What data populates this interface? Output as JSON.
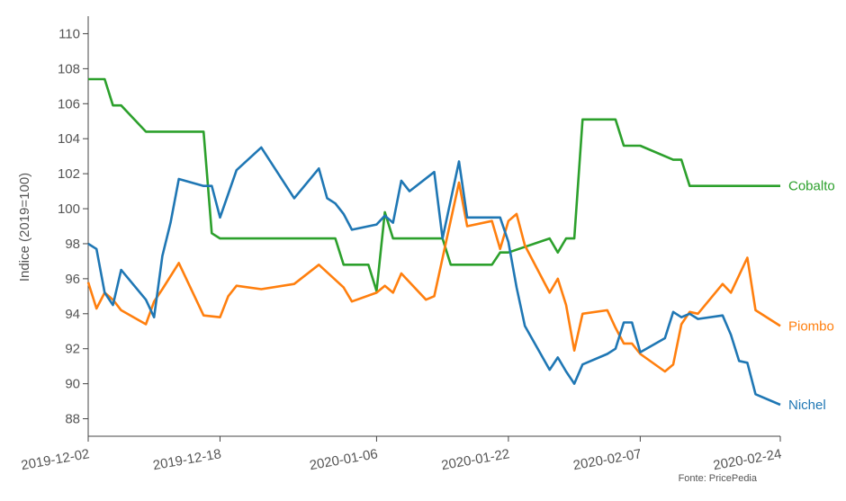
{
  "chart_data": {
    "type": "line",
    "ylabel": "Indice (2019=100)",
    "ylim": [
      87,
      111
    ],
    "yticks": [
      88,
      90,
      92,
      94,
      96,
      98,
      100,
      102,
      104,
      106,
      108,
      110
    ],
    "xlim": [
      "2019-12-02",
      "2020-02-24"
    ],
    "xticks": [
      "2019-12-02",
      "2019-12-18",
      "2020-01-06",
      "2020-01-22",
      "2020-02-07",
      "2020-02-24"
    ],
    "grid": false,
    "legend": "end-of-line labels",
    "source": "Fonte: PricePedia",
    "series": [
      {
        "name": "Cobalto",
        "color": "#2ca02c",
        "points": [
          [
            "2019-12-02",
            107.4
          ],
          [
            "2019-12-04",
            107.4
          ],
          [
            "2019-12-05",
            105.9
          ],
          [
            "2019-12-06",
            105.9
          ],
          [
            "2019-12-09",
            104.4
          ],
          [
            "2019-12-16",
            104.4
          ],
          [
            "2019-12-17",
            98.6
          ],
          [
            "2019-12-18",
            98.3
          ],
          [
            "2020-01-01",
            98.3
          ],
          [
            "2020-01-02",
            96.8
          ],
          [
            "2020-01-05",
            96.8
          ],
          [
            "2020-01-06",
            95.3
          ],
          [
            "2020-01-07",
            99.8
          ],
          [
            "2020-01-08",
            98.3
          ],
          [
            "2020-01-14",
            98.3
          ],
          [
            "2020-01-15",
            96.8
          ],
          [
            "2020-01-20",
            96.8
          ],
          [
            "2020-01-21",
            97.5
          ],
          [
            "2020-01-22",
            97.5
          ],
          [
            "2020-01-27",
            98.3
          ],
          [
            "2020-01-28",
            97.5
          ],
          [
            "2020-01-29",
            98.3
          ],
          [
            "2020-01-30",
            98.3
          ],
          [
            "2020-01-31",
            105.1
          ],
          [
            "2020-02-04",
            105.1
          ],
          [
            "2020-02-05",
            103.6
          ],
          [
            "2020-02-07",
            103.6
          ],
          [
            "2020-02-11",
            102.8
          ],
          [
            "2020-02-12",
            102.8
          ],
          [
            "2020-02-13",
            101.3
          ],
          [
            "2020-02-24",
            101.3
          ]
        ]
      },
      {
        "name": "Piombo",
        "color": "#ff7f0e",
        "points": [
          [
            "2019-12-02",
            95.8
          ],
          [
            "2019-12-03",
            94.3
          ],
          [
            "2019-12-04",
            95.2
          ],
          [
            "2019-12-05",
            94.8
          ],
          [
            "2019-12-06",
            94.2
          ],
          [
            "2019-12-09",
            93.4
          ],
          [
            "2019-12-10",
            94.7
          ],
          [
            "2019-12-11",
            95.4
          ],
          [
            "2019-12-13",
            96.9
          ],
          [
            "2019-12-16",
            93.9
          ],
          [
            "2019-12-18",
            93.8
          ],
          [
            "2019-12-19",
            95.0
          ],
          [
            "2019-12-20",
            95.6
          ],
          [
            "2019-12-23",
            95.4
          ],
          [
            "2019-12-27",
            95.7
          ],
          [
            "2019-12-30",
            96.8
          ],
          [
            "2020-01-02",
            95.5
          ],
          [
            "2020-01-03",
            94.7
          ],
          [
            "2020-01-06",
            95.2
          ],
          [
            "2020-01-07",
            95.6
          ],
          [
            "2020-01-08",
            95.2
          ],
          [
            "2020-01-09",
            96.3
          ],
          [
            "2020-01-12",
            94.8
          ],
          [
            "2020-01-13",
            95.0
          ],
          [
            "2020-01-16",
            101.5
          ],
          [
            "2020-01-17",
            99.0
          ],
          [
            "2020-01-20",
            99.3
          ],
          [
            "2020-01-21",
            97.7
          ],
          [
            "2020-01-22",
            99.3
          ],
          [
            "2020-01-23",
            99.7
          ],
          [
            "2020-01-24",
            97.9
          ],
          [
            "2020-01-27",
            95.2
          ],
          [
            "2020-01-28",
            96.0
          ],
          [
            "2020-01-29",
            94.5
          ],
          [
            "2020-01-30",
            91.9
          ],
          [
            "2020-01-31",
            94.0
          ],
          [
            "2020-02-03",
            94.2
          ],
          [
            "2020-02-04",
            93.2
          ],
          [
            "2020-02-05",
            92.3
          ],
          [
            "2020-02-06",
            92.3
          ],
          [
            "2020-02-07",
            91.7
          ],
          [
            "2020-02-10",
            90.7
          ],
          [
            "2020-02-11",
            91.1
          ],
          [
            "2020-02-12",
            93.4
          ],
          [
            "2020-02-13",
            94.1
          ],
          [
            "2020-02-14",
            94.0
          ],
          [
            "2020-02-17",
            95.7
          ],
          [
            "2020-02-18",
            95.2
          ],
          [
            "2020-02-20",
            97.2
          ],
          [
            "2020-02-21",
            94.2
          ],
          [
            "2020-02-24",
            93.3
          ]
        ]
      },
      {
        "name": "Nichel",
        "color": "#1f77b4",
        "points": [
          [
            "2019-12-02",
            98.0
          ],
          [
            "2019-12-03",
            97.7
          ],
          [
            "2019-12-04",
            95.2
          ],
          [
            "2019-12-05",
            94.5
          ],
          [
            "2019-12-06",
            96.5
          ],
          [
            "2019-12-09",
            94.8
          ],
          [
            "2019-12-10",
            93.8
          ],
          [
            "2019-12-11",
            97.3
          ],
          [
            "2019-12-12",
            99.2
          ],
          [
            "2019-12-13",
            101.7
          ],
          [
            "2019-12-16",
            101.3
          ],
          [
            "2019-12-17",
            101.3
          ],
          [
            "2019-12-18",
            99.5
          ],
          [
            "2019-12-20",
            102.2
          ],
          [
            "2019-12-23",
            103.5
          ],
          [
            "2019-12-27",
            100.6
          ],
          [
            "2019-12-30",
            102.3
          ],
          [
            "2019-12-31",
            100.6
          ],
          [
            "2020-01-01",
            100.3
          ],
          [
            "2020-01-02",
            99.7
          ],
          [
            "2020-01-03",
            98.8
          ],
          [
            "2020-01-06",
            99.1
          ],
          [
            "2020-01-07",
            99.6
          ],
          [
            "2020-01-08",
            99.2
          ],
          [
            "2020-01-09",
            101.6
          ],
          [
            "2020-01-10",
            101.0
          ],
          [
            "2020-01-13",
            102.1
          ],
          [
            "2020-01-14",
            98.3
          ],
          [
            "2020-01-16",
            102.7
          ],
          [
            "2020-01-17",
            99.5
          ],
          [
            "2020-01-21",
            99.5
          ],
          [
            "2020-01-22",
            98.1
          ],
          [
            "2020-01-23",
            95.5
          ],
          [
            "2020-01-24",
            93.3
          ],
          [
            "2020-01-27",
            90.8
          ],
          [
            "2020-01-28",
            91.5
          ],
          [
            "2020-01-29",
            90.7
          ],
          [
            "2020-01-30",
            90.0
          ],
          [
            "2020-01-31",
            91.1
          ],
          [
            "2020-02-03",
            91.7
          ],
          [
            "2020-02-04",
            92.0
          ],
          [
            "2020-02-05",
            93.5
          ],
          [
            "2020-02-06",
            93.5
          ],
          [
            "2020-02-07",
            91.8
          ],
          [
            "2020-02-10",
            92.6
          ],
          [
            "2020-02-11",
            94.1
          ],
          [
            "2020-02-12",
            93.8
          ],
          [
            "2020-02-13",
            94.0
          ],
          [
            "2020-02-14",
            93.7
          ],
          [
            "2020-02-17",
            93.9
          ],
          [
            "2020-02-18",
            92.8
          ],
          [
            "2020-02-19",
            91.3
          ],
          [
            "2020-02-20",
            91.2
          ],
          [
            "2020-02-21",
            89.4
          ],
          [
            "2020-02-24",
            88.8
          ]
        ]
      }
    ]
  }
}
